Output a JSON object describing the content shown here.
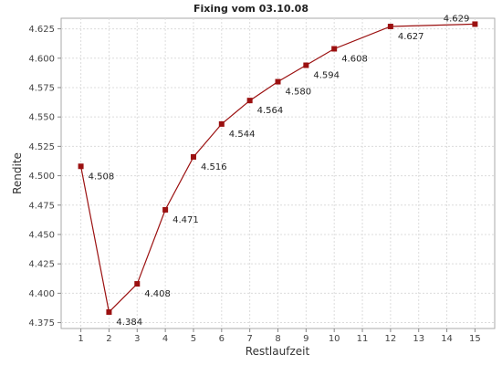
{
  "chart_data": {
    "type": "line",
    "title": "Fixing vom 03.10.08",
    "xlabel": "Restlaufzeit",
    "ylabel": "Rendite",
    "x_ticks": [
      1,
      2,
      3,
      4,
      5,
      6,
      7,
      8,
      9,
      10,
      11,
      12,
      13,
      14,
      15
    ],
    "y_ticks": [
      "4.375",
      "4.400",
      "4.425",
      "4.450",
      "4.475",
      "4.500",
      "4.525",
      "4.550",
      "4.575",
      "4.600",
      "4.625"
    ],
    "ylim": [
      4.37,
      4.634
    ],
    "xlim": [
      0.3,
      15.7
    ],
    "grid": true,
    "series": [
      {
        "color": "#9b1010",
        "points": [
          {
            "x": 1,
            "y": 4.508,
            "label": "4.508"
          },
          {
            "x": 2,
            "y": 4.384,
            "label": "4.384"
          },
          {
            "x": 3,
            "y": 4.408,
            "label": "4.408"
          },
          {
            "x": 4,
            "y": 4.471,
            "label": "4.471"
          },
          {
            "x": 5,
            "y": 4.516,
            "label": "4.516"
          },
          {
            "x": 6,
            "y": 4.544,
            "label": "4.544"
          },
          {
            "x": 7,
            "y": 4.564,
            "label": "4.564"
          },
          {
            "x": 8,
            "y": 4.58,
            "label": "4.580"
          },
          {
            "x": 9,
            "y": 4.594,
            "label": "4.594"
          },
          {
            "x": 10,
            "y": 4.608,
            "label": "4.608"
          },
          {
            "x": 12,
            "y": 4.627,
            "label": "4.627"
          },
          {
            "x": 15,
            "y": 4.629,
            "label": "4.629"
          }
        ]
      }
    ]
  }
}
